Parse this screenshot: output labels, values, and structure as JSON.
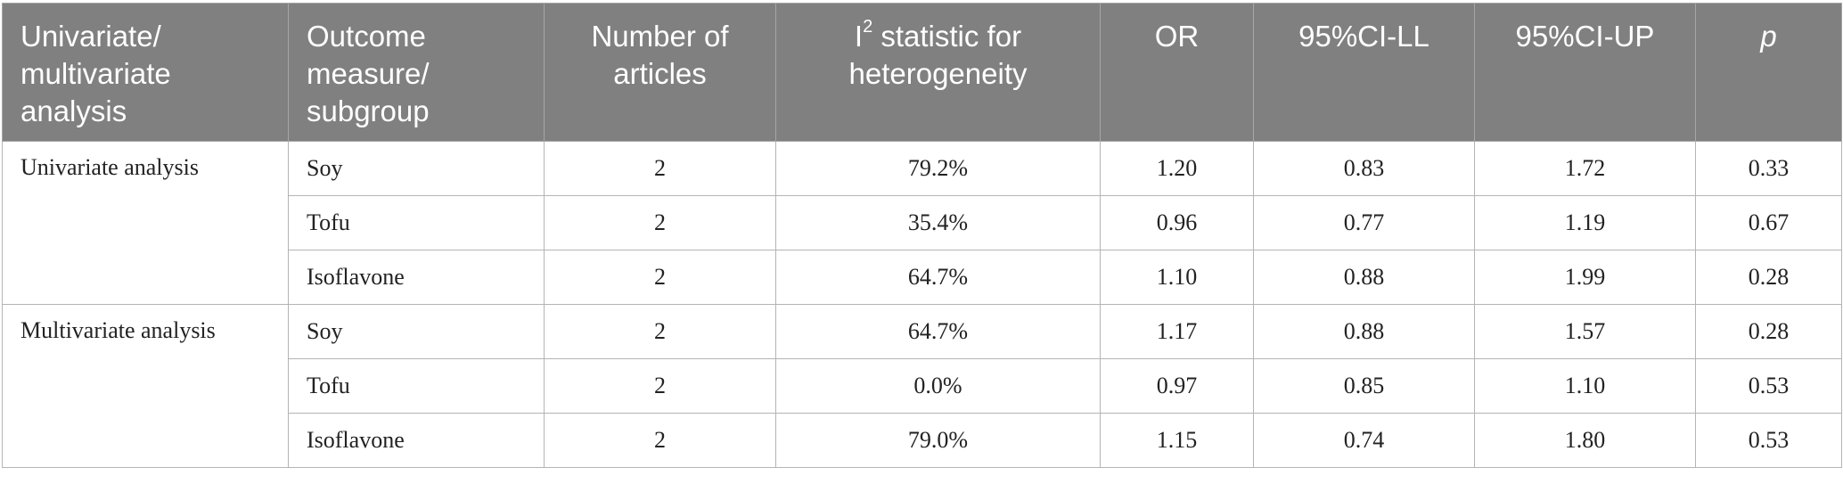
{
  "table": {
    "headers": {
      "analysis": "Univariate/ multivariate analysis",
      "outcome": "Outcome measure/ subgroup",
      "articles": "Number of articles",
      "i2_base": "I",
      "i2_sup": "2",
      "i2_rest": " statistic for heterogeneity",
      "or": "OR",
      "ci_ll": "95%CI-LL",
      "ci_up": "95%CI-UP",
      "p": "p"
    },
    "groups": [
      {
        "label": "Univariate analysis",
        "rows": [
          {
            "outcome": "Soy",
            "articles": "2",
            "i2": "79.2%",
            "or": "1.20",
            "ci_ll": "0.83",
            "ci_up": "1.72",
            "p": "0.33"
          },
          {
            "outcome": "Tofu",
            "articles": "2",
            "i2": "35.4%",
            "or": "0.96",
            "ci_ll": "0.77",
            "ci_up": "1.19",
            "p": "0.67"
          },
          {
            "outcome": "Isoflavone",
            "articles": "2",
            "i2": "64.7%",
            "or": "1.10",
            "ci_ll": "0.88",
            "ci_up": "1.99",
            "p": "0.28"
          }
        ]
      },
      {
        "label": "Multivariate analysis",
        "rows": [
          {
            "outcome": "Soy",
            "articles": "2",
            "i2": "64.7%",
            "or": "1.17",
            "ci_ll": "0.88",
            "ci_up": "1.57",
            "p": "0.28"
          },
          {
            "outcome": "Tofu",
            "articles": "2",
            "i2": "0.0%",
            "or": "0.97",
            "ci_ll": "0.85",
            "ci_up": "1.10",
            "p": "0.53"
          },
          {
            "outcome": "Isoflavone",
            "articles": "2",
            "i2": "79.0%",
            "or": "1.15",
            "ci_ll": "0.74",
            "ci_up": "1.80",
            "p": "0.53"
          }
        ]
      }
    ]
  }
}
